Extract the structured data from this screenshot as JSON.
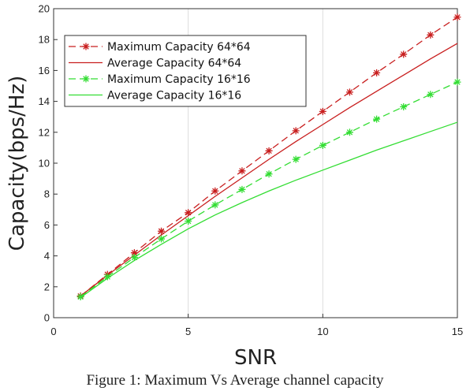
{
  "caption": "Figure 1: Maximum Vs Average channel capacity",
  "chart_data": {
    "type": "line",
    "xlabel": "SNR",
    "ylabel": "Capacity(bps/Hz)",
    "xlim": [
      0,
      15
    ],
    "ylim": [
      0,
      20
    ],
    "xticks": [
      "0",
      "5",
      "10",
      "15"
    ],
    "yticks": [
      "0",
      "2",
      "4",
      "6",
      "8",
      "10",
      "12",
      "14",
      "16",
      "18",
      "20"
    ],
    "grid": "x-major-only",
    "legend_position": "top-left",
    "series": [
      {
        "name": "Maximum Capacity 64*64",
        "style": "dashed-star",
        "color": "#c81e1e",
        "x": [
          1,
          2,
          3,
          4,
          5,
          6,
          7,
          8,
          9,
          10,
          11,
          12,
          13,
          14,
          15
        ],
        "y": [
          1.4,
          2.8,
          4.2,
          5.6,
          6.8,
          8.2,
          9.5,
          10.8,
          12.1,
          13.35,
          14.6,
          15.85,
          17.05,
          18.3,
          19.45
        ]
      },
      {
        "name": "Average Capacity 64*64",
        "style": "solid",
        "color": "#c81e1e",
        "x": [
          1,
          2,
          3,
          4,
          5,
          6,
          7,
          8,
          9,
          10,
          11,
          12,
          13,
          14,
          15
        ],
        "y": [
          1.4,
          2.75,
          4.05,
          5.35,
          6.6,
          7.85,
          9.05,
          10.25,
          11.4,
          12.5,
          13.6,
          14.65,
          15.7,
          16.75,
          17.75
        ]
      },
      {
        "name": "Maximum Capacity 16*16",
        "style": "dashed-star",
        "color": "#33dd33",
        "x": [
          1,
          2,
          3,
          4,
          5,
          6,
          7,
          8,
          9,
          10,
          11,
          12,
          13,
          14,
          15
        ],
        "y": [
          1.35,
          2.65,
          3.9,
          5.1,
          6.25,
          7.3,
          8.3,
          9.3,
          10.25,
          11.15,
          12.0,
          12.85,
          13.65,
          14.45,
          15.25
        ]
      },
      {
        "name": "Average Capacity 16*16",
        "style": "solid",
        "color": "#33dd33",
        "x": [
          1,
          2,
          3,
          4,
          5,
          6,
          7,
          8,
          9,
          10,
          11,
          12,
          13,
          14,
          15
        ],
        "y": [
          1.3,
          2.55,
          3.7,
          4.75,
          5.75,
          6.65,
          7.45,
          8.2,
          8.9,
          9.55,
          10.2,
          10.85,
          11.45,
          12.05,
          12.65
        ]
      }
    ]
  }
}
